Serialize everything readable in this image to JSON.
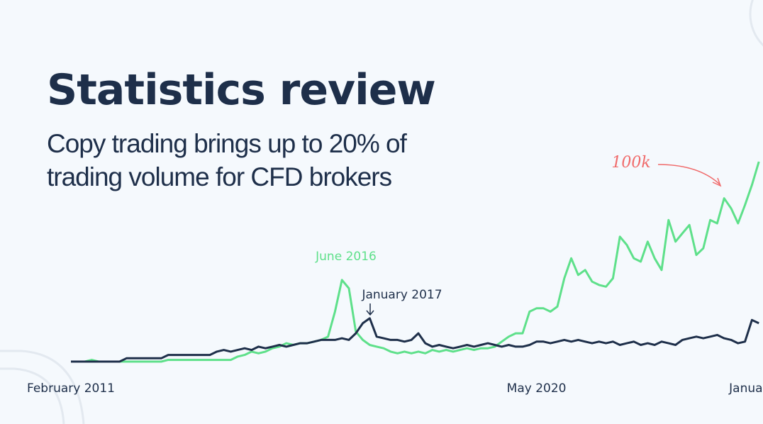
{
  "chart_data": {
    "type": "line",
    "title": "Statistics review",
    "subtitle": [
      "Copy trading brings up to 20% of",
      "trading volume for CFD brokers"
    ],
    "x": [
      "February 2011",
      null,
      null,
      null,
      null,
      null,
      null,
      null,
      null,
      null,
      null,
      null,
      null,
      null,
      null,
      null,
      null,
      null,
      null,
      null,
      null,
      null,
      null,
      null,
      null,
      null,
      null,
      null,
      null,
      null,
      null,
      null,
      null,
      null,
      null,
      null,
      null,
      null,
      null,
      null,
      null,
      null,
      null,
      null,
      null,
      null,
      null,
      null,
      null,
      null,
      null,
      null,
      null,
      null,
      null,
      null,
      null,
      null,
      null,
      null,
      null,
      null,
      null,
      null,
      null,
      null,
      null,
      "May 2020",
      null,
      null,
      null,
      null,
      null,
      null,
      null,
      null,
      null,
      null,
      null,
      null,
      null,
      null,
      null,
      null,
      null,
      null,
      null,
      null,
      null,
      null,
      null,
      null,
      null,
      null,
      null,
      null,
      null,
      null,
      "January",
      null
    ],
    "series": [
      {
        "color": "#5ee08a",
        "values": [
          0,
          0,
          0,
          1,
          0,
          0,
          0,
          0,
          0,
          0,
          0,
          0,
          0,
          0,
          1,
          1,
          1,
          1,
          1,
          1,
          1,
          1,
          1,
          1,
          3,
          4,
          6,
          5,
          6,
          8,
          9,
          11,
          10,
          11,
          11,
          12,
          13,
          15,
          30,
          49,
          44,
          18,
          13,
          10,
          9,
          8,
          6,
          5,
          6,
          5,
          6,
          5,
          7,
          6,
          7,
          6,
          7,
          8,
          7,
          8,
          8,
          9,
          12,
          15,
          17,
          17,
          30,
          32,
          32,
          30,
          33,
          50,
          62,
          52,
          55,
          48,
          46,
          45,
          50,
          75,
          70,
          62,
          60,
          72,
          62,
          55,
          85,
          72,
          77,
          82,
          64,
          68,
          85,
          83,
          98,
          92,
          83,
          94,
          106,
          120
        ]
      },
      {
        "color": "#1e2f4a",
        "values": [
          0,
          0,
          0,
          0,
          0,
          0,
          0,
          0,
          2,
          2,
          2,
          2,
          2,
          2,
          4,
          4,
          4,
          4,
          4,
          4,
          4,
          6,
          7,
          6,
          7,
          8,
          7,
          9,
          8,
          9,
          10,
          9,
          10,
          11,
          11,
          12,
          13,
          13,
          13,
          14,
          13,
          17,
          23,
          26,
          15,
          14,
          13,
          13,
          12,
          13,
          17,
          11,
          9,
          10,
          9,
          8,
          9,
          10,
          9,
          10,
          11,
          10,
          9,
          10,
          9,
          9,
          10,
          12,
          12,
          11,
          12,
          13,
          12,
          13,
          12,
          11,
          12,
          11,
          12,
          10,
          11,
          12,
          10,
          11,
          10,
          12,
          11,
          10,
          13,
          14,
          15,
          14,
          15,
          16,
          14,
          13,
          11,
          12,
          25,
          23
        ]
      }
    ],
    "ylim": [
      0,
      120
    ],
    "annotations": [
      {
        "text": "June 2016",
        "color": "#5ee08a"
      },
      {
        "text": "January 2017",
        "color": "#1e2f4a"
      },
      {
        "text": "100k",
        "color": "#f06a6a"
      }
    ]
  }
}
